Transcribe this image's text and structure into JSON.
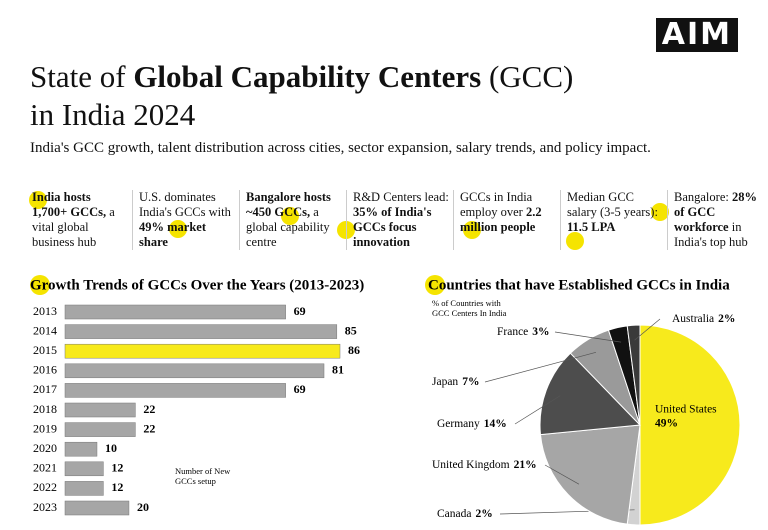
{
  "header": {
    "logo": "AIM",
    "title_lines": [
      [
        {
          "text": "State of ",
          "bold": false
        },
        {
          "text": "Global Capability Centers",
          "bold": true
        },
        {
          "text": " (GCC)",
          "bold": false
        }
      ],
      [
        {
          "text": "in India 2024",
          "bold": false
        }
      ]
    ],
    "subtitle": "India's GCC growth, talent distribution across cities, sector expansion, salary trends, and policy impact."
  },
  "stats": [
    {
      "segments": [
        {
          "text": "India hosts 1,700+ GCCs,",
          "bold": true
        },
        {
          "text": " a vital global business hub",
          "bold": false
        }
      ]
    },
    {
      "segments": [
        {
          "text": "U.S. dominates India's GCCs with ",
          "bold": false
        },
        {
          "text": "49% market share",
          "bold": true
        }
      ]
    },
    {
      "segments": [
        {
          "text": "Bangalore hosts ~450 GCCs,",
          "bold": true
        },
        {
          "text": " a global capability centre",
          "bold": false
        }
      ]
    },
    {
      "segments": [
        {
          "text": "R&D Centers lead: ",
          "bold": false
        },
        {
          "text": "35% of India's GCCs focus innovation",
          "bold": true
        }
      ]
    },
    {
      "segments": [
        {
          "text": "GCCs in India employ over ",
          "bold": false
        },
        {
          "text": "2.2 million people",
          "bold": true
        }
      ]
    },
    {
      "segments": [
        {
          "text": "Median GCC salary (3-5 years): ",
          "bold": false
        },
        {
          "text": "11.5 LPA",
          "bold": true
        }
      ]
    },
    {
      "segments": [
        {
          "text": "Bangalore: ",
          "bold": false
        },
        {
          "text": "28% of GCC workforce",
          "bold": true
        },
        {
          "text": " in India's top hub",
          "bold": false
        }
      ]
    }
  ],
  "chart_data": [
    {
      "type": "bar",
      "orientation": "horizontal",
      "title": "Growth Trends of GCCs Over the Years (2013-2023)",
      "categories": [
        "2013",
        "2014",
        "2015",
        "2016",
        "2017",
        "2018",
        "2019",
        "2020",
        "2021",
        "2022",
        "2023"
      ],
      "values": [
        69,
        85,
        86,
        81,
        69,
        22,
        22,
        10,
        12,
        12,
        20
      ],
      "colors": [
        "#a6a6a6",
        "#a6a6a6",
        "#f7ea1c",
        "#a6a6a6",
        "#a6a6a6",
        "#a6a6a6",
        "#a6a6a6",
        "#a6a6a6",
        "#a6a6a6",
        "#a6a6a6",
        "#a6a6a6"
      ],
      "annotation": [
        "Number of New",
        "GCCs setup"
      ]
    },
    {
      "type": "pie",
      "title": "Countries that have Established GCCs in India",
      "subtitle": [
        "% of Countries with",
        "GCC Centers In India"
      ],
      "categories": [
        "United States",
        "Canada",
        "United Kingdom",
        "Germany",
        "Japan",
        "France",
        "Australia"
      ],
      "values": [
        49,
        2,
        21,
        14,
        7,
        3,
        2
      ],
      "value_labels": [
        "49%",
        "2%",
        "21%",
        "14%",
        "7%",
        "3%",
        "2%"
      ],
      "colors": [
        "#f7ea1c",
        "#d2d2d2",
        "#a6a6a6",
        "#4d4d4d",
        "#9a9a9a",
        "#111111",
        "#3a3a3a"
      ]
    }
  ]
}
